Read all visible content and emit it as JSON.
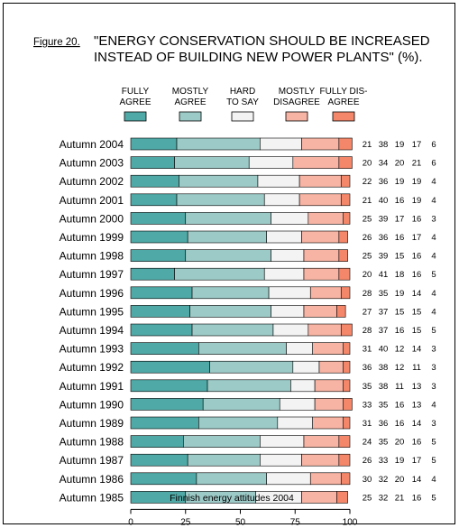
{
  "figure_label": "Figure 20.",
  "title_line1": "\"ENERGY CONSERVATION SHOULD BE INCREASED",
  "title_line2": "INSTEAD OF BUILDING NEW POWER PLANTS\" (%).",
  "colors": {
    "fully_agree": "#4fa9a6",
    "mostly_agree": "#9ccac7",
    "hard_to_say": "#f3f3f3",
    "mostly_disagree": "#f7b3a3",
    "fully_disagree": "#f48669"
  },
  "chart_data": {
    "type": "bar",
    "orientation": "horizontal",
    "stacked": true,
    "xlabel": "Finnish energy attitudes 2004",
    "xlim": [
      0,
      100
    ],
    "xticks": [
      0,
      25,
      50,
      75,
      100
    ],
    "categories": [
      "Autumn 2004",
      "Autumn 2003",
      "Autumn 2002",
      "Autumn 2001",
      "Autumn 2000",
      "Autumn 1999",
      "Autumn 1998",
      "Autumn 1997",
      "Autumn 1996",
      "Autumn 1995",
      "Autumn 1994",
      "Autumn 1993",
      "Autumn 1992",
      "Autumn 1991",
      "Autumn 1990",
      "Autumn 1989",
      "Autumn 1988",
      "Autumn 1987",
      "Autumn 1986",
      "Autumn 1985"
    ],
    "series": [
      {
        "name": "FULLY AGREE",
        "legend": [
          "FULLY",
          "AGREE"
        ],
        "color_key": "fully_agree",
        "values": [
          21,
          20,
          22,
          21,
          25,
          26,
          25,
          20,
          28,
          27,
          28,
          31,
          36,
          35,
          33,
          31,
          24,
          26,
          30,
          25
        ]
      },
      {
        "name": "MOSTLY AGREE",
        "legend": [
          "MOSTLY",
          "AGREE"
        ],
        "color_key": "mostly_agree",
        "values": [
          38,
          34,
          36,
          40,
          39,
          36,
          39,
          41,
          35,
          37,
          37,
          40,
          38,
          38,
          35,
          36,
          35,
          33,
          32,
          32
        ]
      },
      {
        "name": "HARD TO SAY",
        "legend": [
          "HARD",
          "TO SAY"
        ],
        "color_key": "hard_to_say",
        "values": [
          19,
          20,
          19,
          16,
          17,
          16,
          15,
          18,
          19,
          15,
          16,
          12,
          12,
          11,
          16,
          16,
          20,
          19,
          20,
          21
        ]
      },
      {
        "name": "MOSTLY DISAGREE",
        "legend": [
          "MOSTLY",
          "DISAGREE"
        ],
        "color_key": "mostly_disagree",
        "values": [
          17,
          21,
          19,
          19,
          16,
          17,
          16,
          16,
          14,
          15,
          15,
          14,
          11,
          13,
          13,
          14,
          16,
          17,
          14,
          16
        ]
      },
      {
        "name": "FULLY DISAGREE",
        "legend": [
          "FULLY DIS-",
          "AGREE"
        ],
        "color_key": "fully_disagree",
        "values": [
          6,
          6,
          4,
          4,
          3,
          4,
          4,
          5,
          4,
          4,
          5,
          3,
          3,
          3,
          4,
          3,
          5,
          5,
          4,
          5
        ]
      }
    ]
  }
}
